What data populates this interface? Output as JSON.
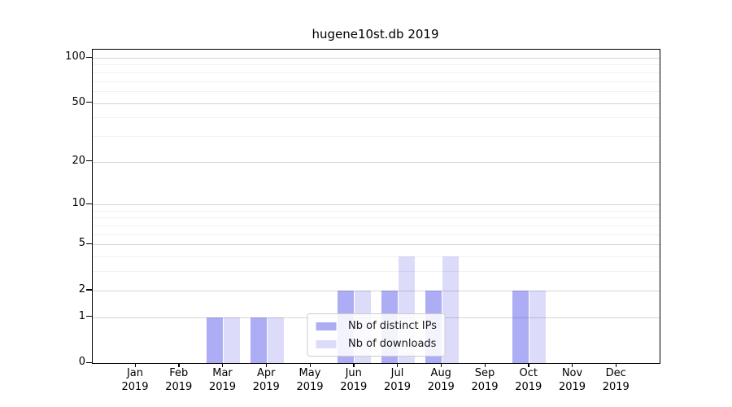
{
  "chart_data": {
    "type": "bar",
    "title": "hugene10st.db 2019",
    "categories": [
      "Jan",
      "Feb",
      "Mar",
      "Apr",
      "May",
      "Jun",
      "Jul",
      "Aug",
      "Sep",
      "Oct",
      "Nov",
      "Dec"
    ],
    "year": "2019",
    "series": [
      {
        "name": "Nb of distinct IPs",
        "color": "#adadf6",
        "values": [
          0,
          0,
          1,
          1,
          0,
          2,
          2,
          2,
          0,
          2,
          0,
          0
        ]
      },
      {
        "name": "Nb of downloads",
        "color": "#dcdcfa",
        "values": [
          0,
          0,
          1,
          1,
          0,
          2,
          4,
          4,
          0,
          2,
          0,
          0
        ]
      }
    ],
    "y_axis": {
      "scale": "log1p",
      "ticks": [
        0,
        1,
        2,
        5,
        10,
        20,
        50,
        100
      ],
      "minor_ticks": [
        3,
        4,
        6,
        7,
        8,
        9,
        30,
        40,
        60,
        70,
        80,
        90
      ],
      "ylim": [
        0,
        113
      ]
    },
    "x_axis": {
      "tick_label_year": "2019"
    },
    "legend": {
      "position": "lower center"
    },
    "grid": true,
    "colors": {
      "major_grid": "rgba(0,0,0,0.16)",
      "minor_grid": "rgba(0,0,0,0.055)",
      "axis": "#000000",
      "background": "#ffffff"
    }
  }
}
